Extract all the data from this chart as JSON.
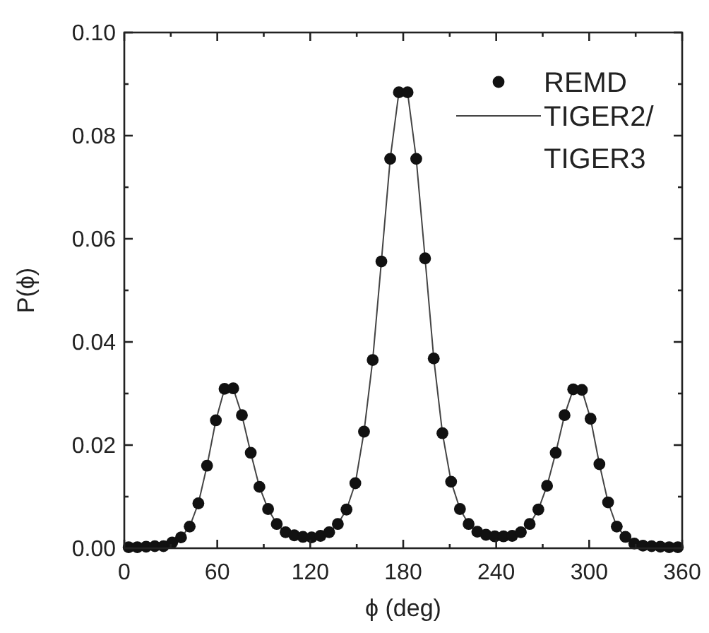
{
  "chart_data": {
    "type": "scatter",
    "xlabel": "ϕ (deg)",
    "ylabel": "P(ϕ)",
    "xlim": [
      0,
      360
    ],
    "ylim": [
      0,
      0.1
    ],
    "xticks": [
      0,
      {
        "value": 30,
        "label": null
      },
      60,
      {
        "value": 90,
        "label": null
      },
      120,
      {
        "value": 150,
        "label": null
      },
      180,
      {
        "value": 210,
        "label": null
      },
      240,
      {
        "value": 270,
        "label": null
      },
      300,
      {
        "value": 330,
        "label": null
      },
      360
    ],
    "yticks": [
      {
        "value": 0,
        "label": "0.00"
      },
      {
        "value": 0.01,
        "label": null
      },
      {
        "value": 0.02,
        "label": "0.02"
      },
      {
        "value": 0.03,
        "label": null
      },
      {
        "value": 0.04,
        "label": "0.04"
      },
      {
        "value": 0.05,
        "label": null
      },
      {
        "value": 0.06,
        "label": "0.06"
      },
      {
        "value": 0.07,
        "label": null
      },
      {
        "value": 0.08,
        "label": "0.08"
      },
      {
        "value": 0.09,
        "label": null
      },
      {
        "value": 0.1,
        "label": "0.10"
      }
    ],
    "x": [
      2.8,
      8.4,
      14.1,
      19.7,
      25.3,
      30.9,
      36.6,
      42.2,
      47.8,
      53.4,
      59.1,
      64.7,
      70.3,
      75.9,
      81.6,
      87.2,
      92.8,
      98.4,
      104.1,
      109.7,
      115.3,
      120.9,
      126.6,
      132.2,
      137.8,
      143.4,
      149.1,
      154.7,
      160.3,
      165.9,
      171.6,
      177.2,
      182.8,
      188.4,
      194.1,
      199.7,
      205.3,
      210.9,
      216.6,
      222.2,
      227.8,
      233.4,
      239.1,
      244.7,
      250.3,
      255.9,
      261.6,
      267.2,
      272.8,
      278.4,
      284.1,
      289.7,
      295.3,
      300.9,
      306.6,
      312.2,
      317.8,
      323.4,
      329.1,
      334.7,
      340.3,
      345.9,
      351.6,
      357.2
    ],
    "series": [
      {
        "name": "REMD",
        "marker": "circle",
        "color": "#111111",
        "values": [
          0.0002,
          0.0002,
          0.0003,
          0.0004,
          0.0004,
          0.0011,
          0.0021,
          0.0042,
          0.0087,
          0.016,
          0.0248,
          0.0309,
          0.031,
          0.0258,
          0.0185,
          0.0119,
          0.0076,
          0.0047,
          0.0031,
          0.0025,
          0.0022,
          0.0021,
          0.0024,
          0.0031,
          0.0047,
          0.0075,
          0.0126,
          0.0226,
          0.0365,
          0.0556,
          0.0755,
          0.0884,
          0.0884,
          0.0755,
          0.0562,
          0.0368,
          0.0223,
          0.0129,
          0.0076,
          0.0047,
          0.0032,
          0.0026,
          0.0023,
          0.0023,
          0.0024,
          0.0031,
          0.0047,
          0.0075,
          0.0121,
          0.0185,
          0.0258,
          0.0308,
          0.0307,
          0.0251,
          0.0163,
          0.0089,
          0.0042,
          0.0022,
          0.0009,
          0.0005,
          0.0004,
          0.0003,
          0.0002,
          0.0002
        ]
      },
      {
        "name": "TIGER2/TIGER3",
        "type": "line",
        "marker": "none",
        "line_style": "solid",
        "color": "#444444",
        "values": [
          0.0002,
          0.0002,
          0.0003,
          0.0004,
          0.0004,
          0.0011,
          0.0021,
          0.0042,
          0.0087,
          0.016,
          0.0248,
          0.0309,
          0.031,
          0.0258,
          0.0185,
          0.0119,
          0.0076,
          0.0047,
          0.0031,
          0.0025,
          0.0022,
          0.0021,
          0.0024,
          0.0031,
          0.0047,
          0.0075,
          0.0126,
          0.0226,
          0.0365,
          0.0556,
          0.0755,
          0.0884,
          0.0884,
          0.0755,
          0.0562,
          0.0368,
          0.0223,
          0.0129,
          0.0076,
          0.0047,
          0.0032,
          0.0026,
          0.0023,
          0.0023,
          0.0024,
          0.0031,
          0.0047,
          0.0075,
          0.0121,
          0.0185,
          0.0258,
          0.0308,
          0.0307,
          0.0251,
          0.0163,
          0.0089,
          0.0042,
          0.0022,
          0.0009,
          0.0005,
          0.0004,
          0.0003,
          0.0002,
          0.0002
        ]
      }
    ],
    "legend": "top right",
    "grid": false
  }
}
